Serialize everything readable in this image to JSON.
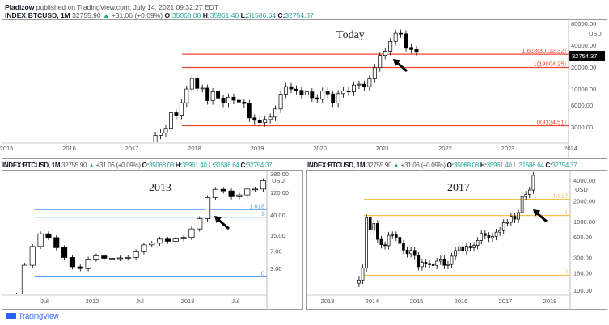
{
  "header": {
    "author": "Pladizow",
    "published": "published on TradingView.com, July 14, 2021 09:32:27 EDT"
  },
  "symbol": {
    "name": "INDEX:BTCUSD, 1M",
    "last": "32755.90",
    "change": "+31.06 (+0.09%)",
    "o_label": "O:",
    "o": "35068.08",
    "h_label": "H:",
    "h": "35961.40",
    "l_label": "L:",
    "l": "31586.64",
    "c_label": "C:",
    "c": "32754.37"
  },
  "colors": {
    "up": "#ffffff",
    "down": "#000000",
    "fib_main": "#f44336",
    "fib_2013": "#5b9cf0",
    "fib_2017": "#f5c04a",
    "ticker": "#26a69a"
  },
  "footer": {
    "brand": "TradingView"
  },
  "chart_data": [
    {
      "type": "candlestick",
      "title": "Today",
      "scale": "log",
      "currency": "USD",
      "price_label": "32754.37",
      "x_ticks": [
        "2015",
        "2016",
        "2017",
        "2018",
        "2019",
        "2020",
        "2021",
        "2022",
        "2023",
        "2024"
      ],
      "y_ticks": [
        "3000.00",
        "6000.00",
        "10000.00",
        "20000.00",
        "40000.00",
        "80000.00"
      ],
      "fib": [
        {
          "label": "1.618(30112.32)",
          "value": 30112.32
        },
        {
          "label": "1(19804.25)",
          "value": 19804.25
        },
        {
          "label": "0(3124.51)",
          "value": 3124.51
        }
      ],
      "start": "2017-01",
      "closes": [
        970,
        1190,
        1080,
        1350,
        2300,
        2480,
        2870,
        4700,
        4340,
        6450,
        10000,
        14000,
        10200,
        10300,
        6900,
        9200,
        7500,
        6400,
        7700,
        7000,
        6600,
        6300,
        4000,
        3700,
        3440,
        3800,
        4100,
        5300,
        8500,
        10800,
        10000,
        9600,
        8300,
        9150,
        7550,
        7200,
        9350,
        8550,
        6400,
        8630,
        9450,
        9140,
        11350,
        11650,
        10780,
        13800,
        19700,
        29000,
        33100,
        45200,
        58800,
        57700,
        37300,
        35000,
        32754
      ]
    },
    {
      "type": "candlestick",
      "title": "2013",
      "scale": "log",
      "currency": "USD",
      "x_ticks": [
        "Jul",
        "2012",
        "Jul",
        "2013",
        "Jul"
      ],
      "y_ticks": [
        "3.00",
        "7.00",
        "15.00",
        "40.00",
        "120.00",
        "380.00"
      ],
      "fib": [
        {
          "label": "1.618",
          "value": 52
        },
        {
          "label": "1",
          "value": 36
        },
        {
          "label": "0",
          "value": 2
        }
      ],
      "start": "2011-03",
      "closes": [
        0.8,
        3.5,
        8.7,
        16.1,
        13.4,
        8.2,
        5.1,
        3.25,
        2.97,
        4.72,
        5.5,
        4.9,
        4.9,
        5,
        5.1,
        6.7,
        9.4,
        10.2,
        12.4,
        11.2,
        12.6,
        13.5,
        20.4,
        33.4,
        93,
        139,
        129,
        97,
        106,
        141,
        141,
        211
      ]
    },
    {
      "type": "candlestick",
      "title": "2017",
      "scale": "log",
      "currency": "USD",
      "x_ticks": [
        "2013",
        "2014",
        "2015",
        "2016",
        "2017",
        "2018"
      ],
      "y_ticks": [
        "100.00",
        "180.00",
        "300.00",
        "600.00",
        "1000.00",
        "2000.00",
        "4000.00"
      ],
      "fib": [
        {
          "label": "1.618",
          "value": 2100
        },
        {
          "label": "1",
          "value": 1220
        },
        {
          "label": "0",
          "value": 165
        }
      ],
      "start": "2013-09",
      "closes": [
        141,
        211,
        1130,
        750,
        935,
        550,
        460,
        445,
        630,
        640,
        590,
        480,
        385,
        340,
        380,
        320,
        220,
        255,
        245,
        235,
        230,
        265,
        285,
        230,
        237,
        313,
        378,
        430,
        370,
        437,
        416,
        448,
        530,
        670,
        625,
        573,
        608,
        700,
        740,
        960,
        970,
        1190,
        1080,
        1350,
        2300,
        2480,
        2870,
        4700
      ]
    }
  ]
}
